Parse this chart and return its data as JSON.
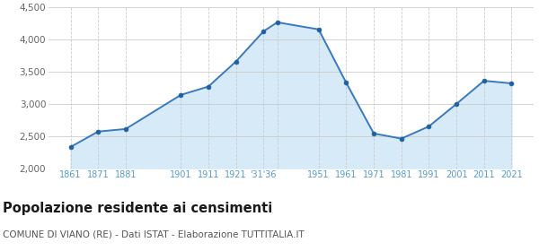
{
  "years": [
    1861,
    1871,
    1881,
    1901,
    1911,
    1921,
    1931,
    1936,
    1951,
    1961,
    1971,
    1981,
    1991,
    2001,
    2011,
    2021
  ],
  "population": [
    2330,
    2570,
    2610,
    3140,
    3270,
    3660,
    4130,
    4270,
    4160,
    3330,
    2540,
    2460,
    2650,
    3000,
    3360,
    3320
  ],
  "line_color": "#3a7abf",
  "fill_color": "#d6eaf8",
  "marker_color": "#2060a0",
  "ylim": [
    2000,
    4500
  ],
  "yticks": [
    2000,
    2500,
    3000,
    3500,
    4000,
    4500
  ],
  "title": "Popolazione residente ai censimenti",
  "title_fontsize": 10.5,
  "subtitle": "COMUNE DI VIANO (RE) - Dati ISTAT - Elaborazione TUTTITALIA.IT",
  "subtitle_fontsize": 7.5,
  "background_color": "#ffffff",
  "grid_color": "#cccccc",
  "tick_label_color": "#5599cc",
  "ytick_color": "#666666"
}
